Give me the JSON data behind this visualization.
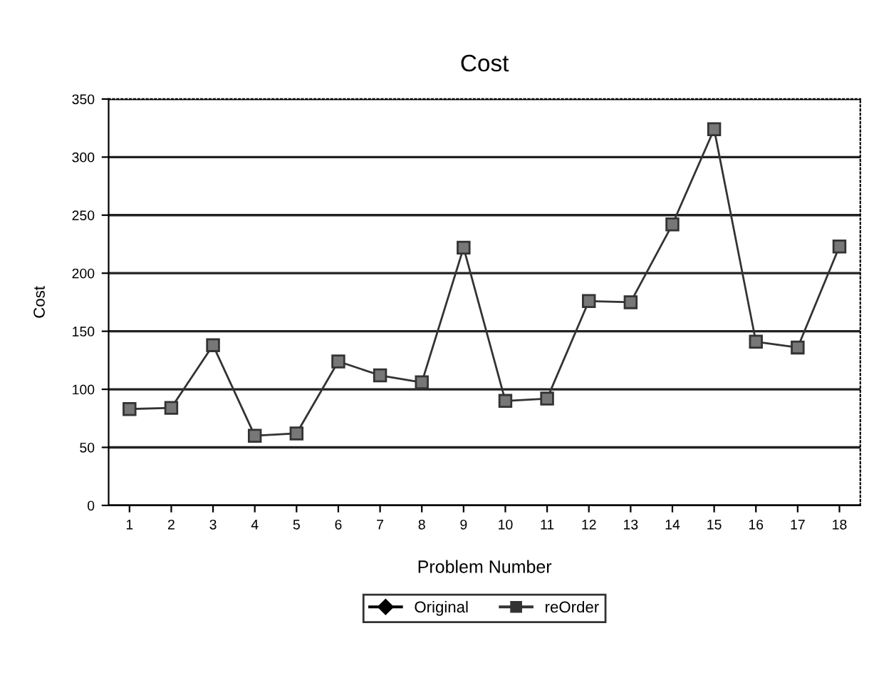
{
  "chart_data": {
    "type": "line",
    "title": "Cost",
    "xlabel": "Problem Number",
    "ylabel": "Cost",
    "categories": [
      "1",
      "2",
      "3",
      "4",
      "5",
      "6",
      "7",
      "8",
      "9",
      "10",
      "11",
      "12",
      "13",
      "14",
      "15",
      "16",
      "17",
      "18"
    ],
    "ylim": [
      0,
      350
    ],
    "yticks": [
      0,
      50,
      100,
      150,
      200,
      250,
      300,
      350
    ],
    "grid": "y",
    "legend": "bottom",
    "series": [
      {
        "name": "Original",
        "color": "#000000",
        "marker": "diamond",
        "values": [
          null,
          null,
          null,
          null,
          null,
          null,
          null,
          null,
          null,
          null,
          null,
          null,
          null,
          null,
          null,
          null,
          null,
          null
        ]
      },
      {
        "name": "reOrder",
        "color": "#333333",
        "marker": "square",
        "values": [
          83,
          84,
          138,
          60,
          62,
          124,
          112,
          106,
          222,
          90,
          92,
          176,
          175,
          242,
          324,
          141,
          136,
          223
        ]
      }
    ]
  }
}
